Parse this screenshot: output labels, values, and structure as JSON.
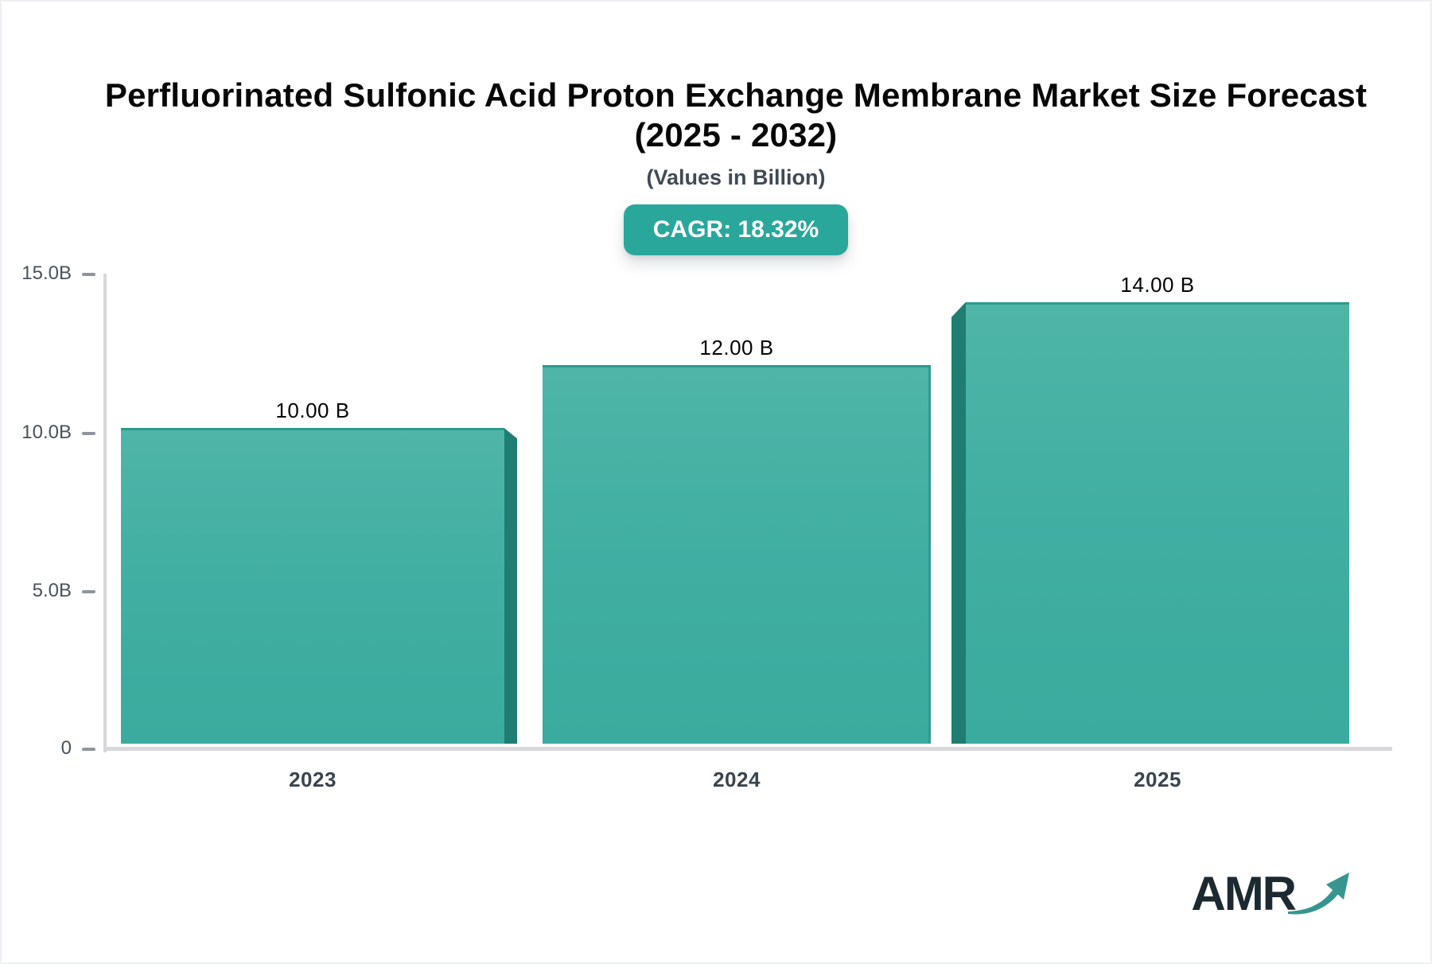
{
  "header": {
    "title_line1": "Perfluorinated Sulfonic Acid Proton Exchange Membrane Market Size Forecast",
    "title_line2": "(2025 - 2032)",
    "subtitle": "(Values in Billion)",
    "cagr_badge": "CAGR: 18.32%"
  },
  "chart_data": {
    "type": "bar",
    "title": "Perfluorinated Sulfonic Acid Proton Exchange Membrane Market Size Forecast (2025 - 2032)",
    "subtitle": "(Values in Billion)",
    "cagr_percent": 18.32,
    "categories": [
      "2023",
      "2024",
      "2025"
    ],
    "values": [
      10.0,
      12.0,
      14.0
    ],
    "value_labels": [
      "10.00 B",
      "12.00 B",
      "14.00 B"
    ],
    "unit": "Billion",
    "ylim": [
      0,
      15
    ],
    "ytick_labels_top_down": [
      "15.0B",
      "10.0B",
      "5.0B",
      "0"
    ],
    "grid": false,
    "legend": "none",
    "bar_style": "3d-extruded",
    "colors": {
      "bar_top": "#4FB5A8",
      "bar_bottom": "#3AAB9E",
      "bar_side_face": "#1F7D72",
      "bar_top_edge": "#2B9A8D",
      "accent_badge": "#2AA79B",
      "axis_line": "#D7D7DC",
      "tick_mark": "#8F959C",
      "axis_text": "#49525C",
      "category_text": "#3A444E",
      "value_text": "#050505",
      "title_text": "#070707",
      "subtitle_text": "#3F4A55"
    }
  },
  "logo": {
    "brand": "AMR",
    "arrow_icon": "upward-trend-arrow",
    "brand_color": "#1B2931",
    "arrow_color": "#36968F"
  }
}
